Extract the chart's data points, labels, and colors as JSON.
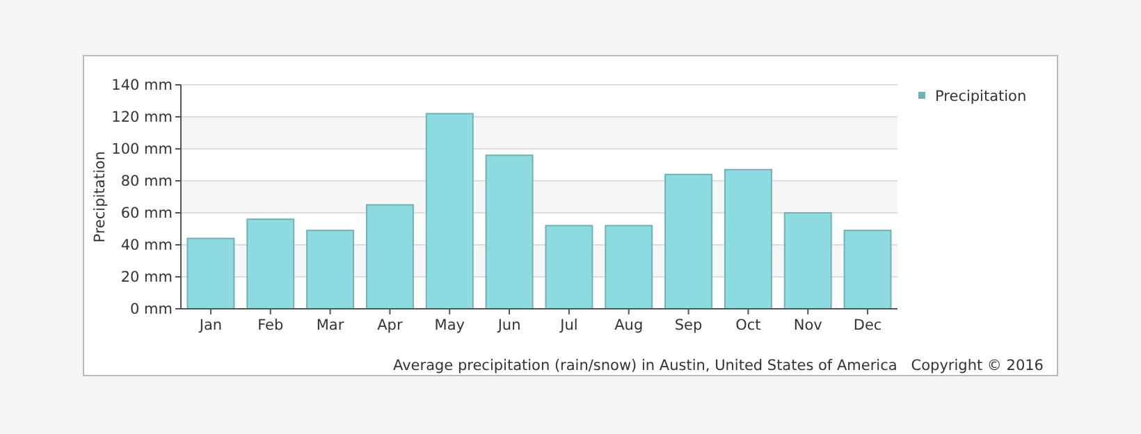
{
  "chart_data": {
    "type": "bar",
    "ylabel": "Precipitation",
    "categories": [
      "Jan",
      "Feb",
      "Mar",
      "Apr",
      "May",
      "Jun",
      "Jul",
      "Aug",
      "Sep",
      "Oct",
      "Nov",
      "Dec"
    ],
    "series": [
      {
        "name": "Precipitation",
        "color": "#8cdce1",
        "values": [
          44,
          56,
          49,
          65,
          122,
          96,
          52,
          52,
          84,
          87,
          60,
          49
        ]
      }
    ],
    "ylim": [
      0,
      140
    ],
    "yticks": [
      {
        "value": 0,
        "label": "0 mm"
      },
      {
        "value": 20,
        "label": "20 mm"
      },
      {
        "value": 40,
        "label": "40 mm"
      },
      {
        "value": 60,
        "label": "60 mm"
      },
      {
        "value": 80,
        "label": "80 mm"
      },
      {
        "value": 100,
        "label": "100 mm"
      },
      {
        "value": 120,
        "label": "120 mm"
      },
      {
        "value": 140,
        "label": "140 mm"
      }
    ],
    "grid": "y",
    "legend": "top right",
    "annotations": [
      "Average precipitation (rain/snow) in Austin, United States of America   Copyright © 2016"
    ]
  }
}
